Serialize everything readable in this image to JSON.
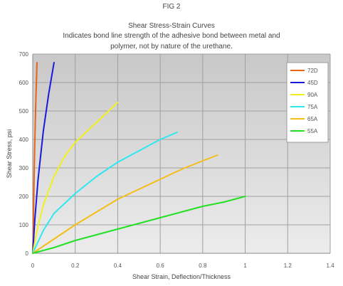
{
  "chart_data": {
    "type": "line",
    "figure_label": "FIG 2",
    "title": "Shear Stress-Strain Curves",
    "subtitle_lines": [
      "Indicates bond line strength of the adhesive bond between metal and",
      "polymer, not by nature of the urethane."
    ],
    "xlabel": "Shear Strain, Deflection/Thickness",
    "ylabel": "Shear Stress, psi",
    "xlim": [
      0,
      1.4
    ],
    "ylim": [
      0,
      700
    ],
    "x_ticks": [
      "0",
      "0.2",
      "0.4",
      "0.6",
      "0.8",
      "1",
      "1.2",
      "1.4"
    ],
    "y_ticks": [
      "0",
      "100",
      "200",
      "300",
      "400",
      "500",
      "600",
      "700"
    ],
    "grid": true,
    "legend_position": "top-right",
    "series": [
      {
        "name": "72D",
        "color": "#e8641a",
        "x": [
          0,
          0.003,
          0.006,
          0.01,
          0.015,
          0.02
        ],
        "y": [
          0,
          100,
          250,
          400,
          550,
          670
        ]
      },
      {
        "name": "45D",
        "color": "#1a1adc",
        "x": [
          0,
          0.01,
          0.025,
          0.05,
          0.075,
          0.1
        ],
        "y": [
          0,
          120,
          260,
          430,
          560,
          670
        ]
      },
      {
        "name": "90A",
        "color": "#f0f020",
        "x": [
          0,
          0.02,
          0.05,
          0.1,
          0.15,
          0.2,
          0.3,
          0.4
        ],
        "y": [
          0,
          80,
          170,
          270,
          340,
          390,
          460,
          530
        ]
      },
      {
        "name": "75A",
        "color": "#2ee8f0",
        "x": [
          0,
          0.05,
          0.1,
          0.2,
          0.3,
          0.4,
          0.5,
          0.6,
          0.68
        ],
        "y": [
          0,
          80,
          140,
          210,
          270,
          320,
          360,
          400,
          425
        ]
      },
      {
        "name": "65A",
        "color": "#f4be18",
        "x": [
          0,
          0.1,
          0.2,
          0.3,
          0.4,
          0.5,
          0.6,
          0.7,
          0.8,
          0.87
        ],
        "y": [
          0,
          50,
          100,
          145,
          190,
          225,
          260,
          295,
          325,
          345
        ]
      },
      {
        "name": "55A",
        "color": "#22e022",
        "x": [
          0,
          0.1,
          0.2,
          0.3,
          0.4,
          0.5,
          0.6,
          0.7,
          0.8,
          0.9,
          1.0
        ],
        "y": [
          0,
          20,
          45,
          65,
          85,
          105,
          125,
          145,
          165,
          180,
          200
        ]
      }
    ]
  }
}
